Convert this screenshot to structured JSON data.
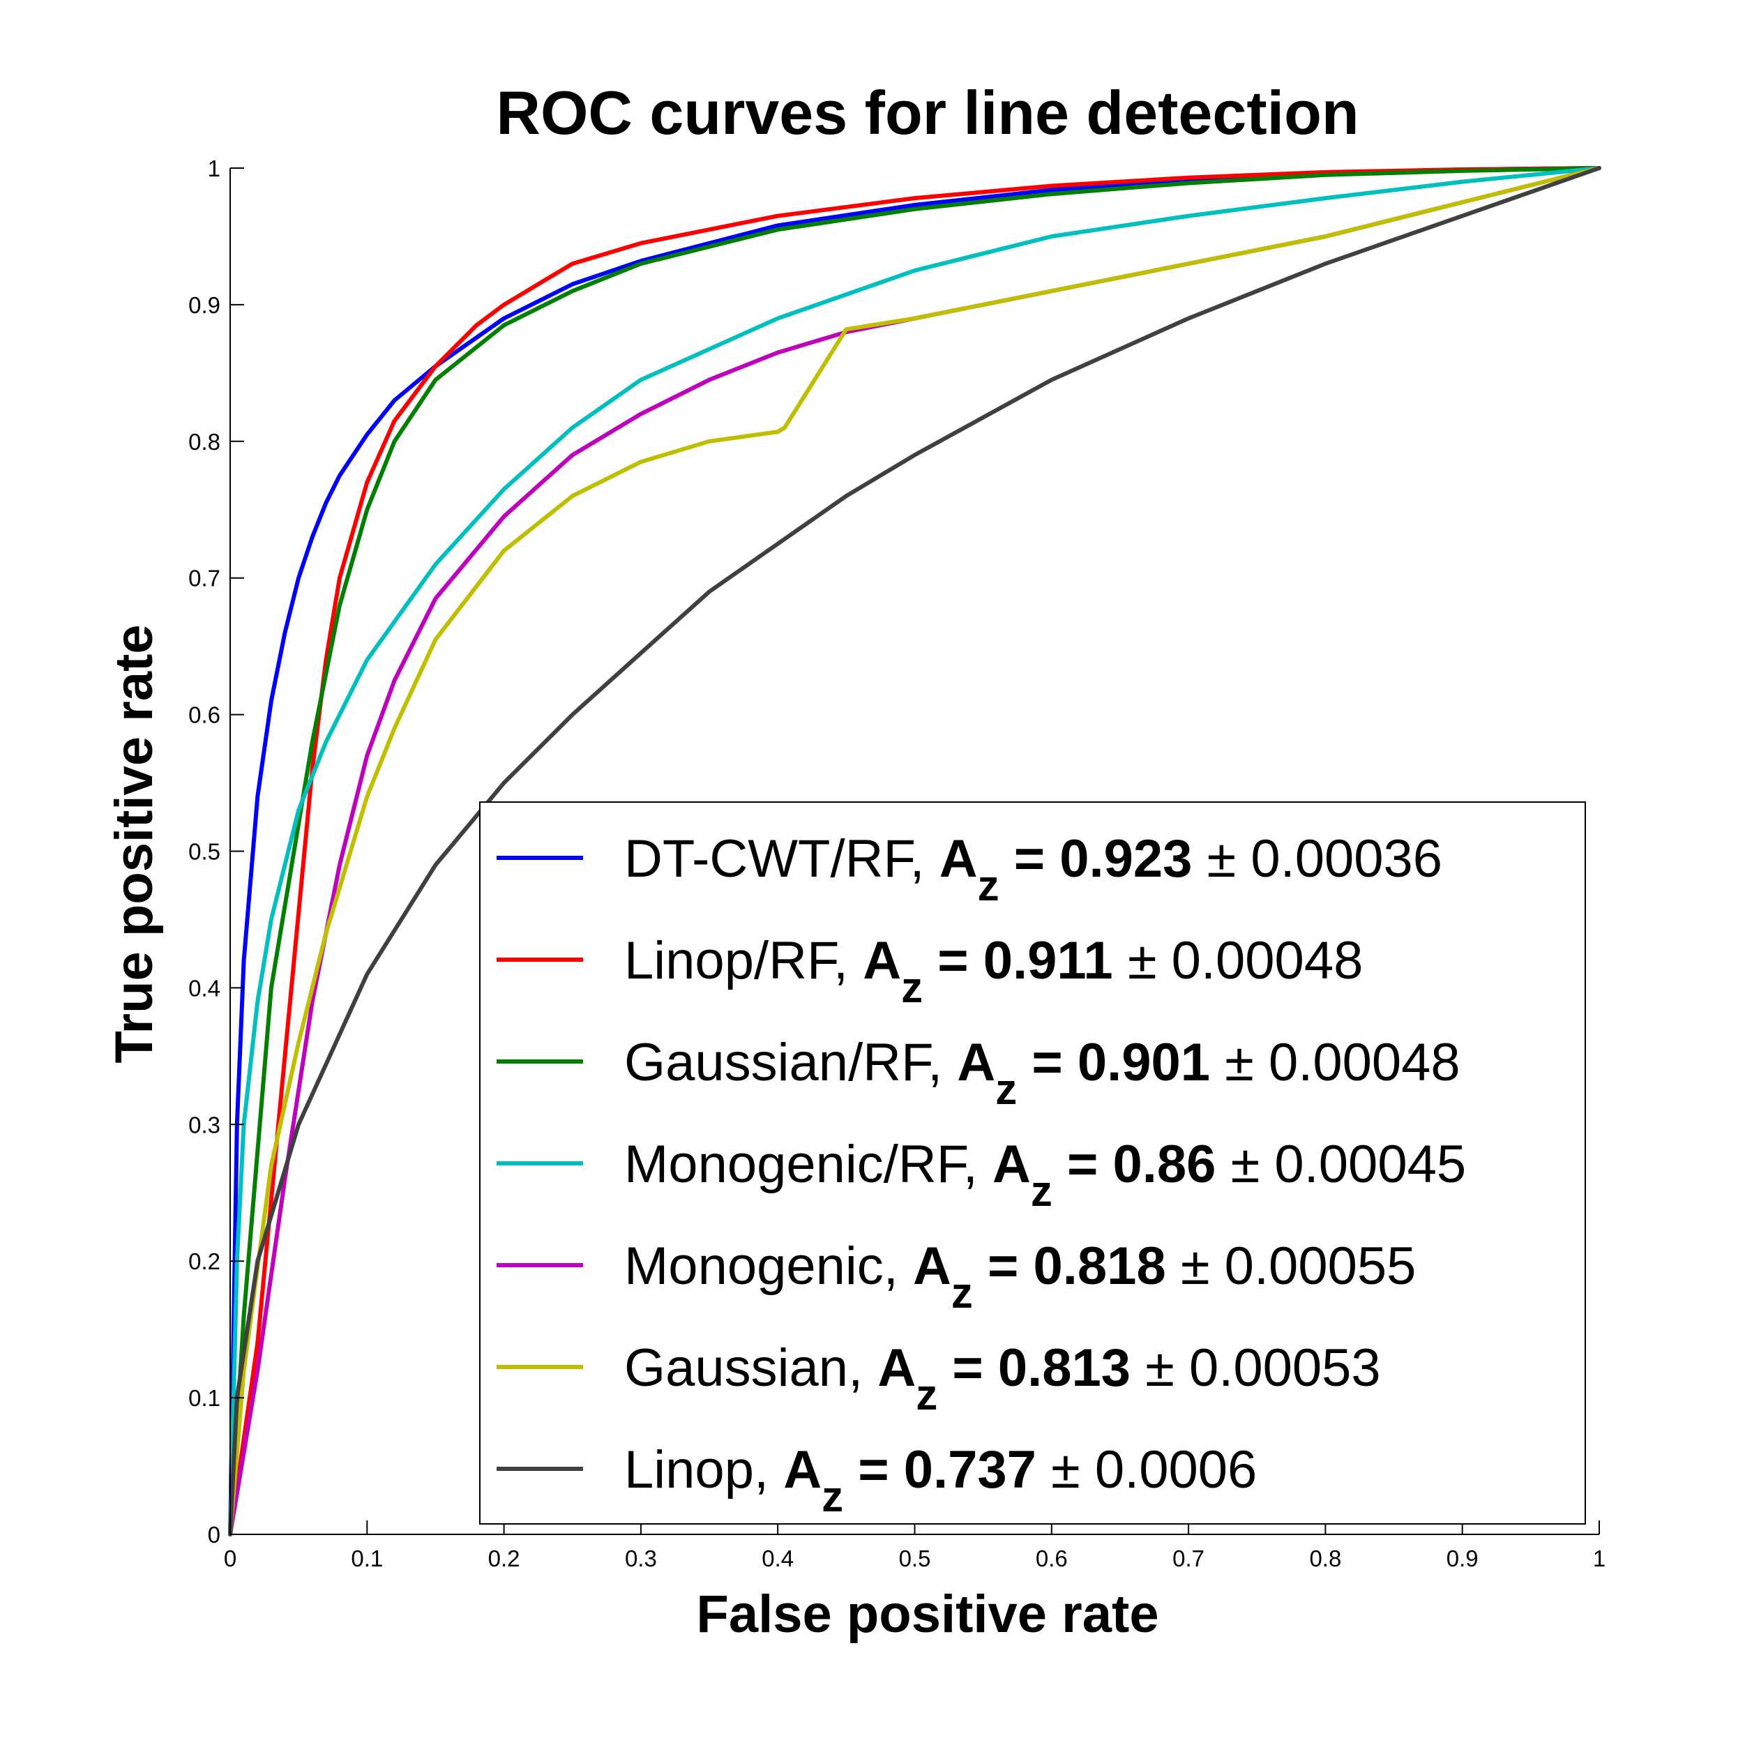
{
  "chart_data": {
    "type": "line",
    "title": "ROC curves for line detection",
    "xlabel": "False positive rate",
    "ylabel": "True positive rate",
    "xlim": [
      0,
      1
    ],
    "ylim": [
      0,
      1
    ],
    "xticks": [
      "0",
      "0.1",
      "0.2",
      "0.3",
      "0.4",
      "0.5",
      "0.6",
      "0.7",
      "0.8",
      "0.9",
      "1"
    ],
    "yticks": [
      "0",
      "0.1",
      "0.2",
      "0.3",
      "0.4",
      "0.5",
      "0.6",
      "0.7",
      "0.8",
      "0.9",
      "1"
    ],
    "grid": false,
    "legend_position": "bottom-right",
    "series": [
      {
        "name": "DT-CWT/RF",
        "az": "0.923",
        "pm": "0.00036",
        "color": "#0000ff",
        "x": [
          0,
          0.005,
          0.01,
          0.02,
          0.03,
          0.04,
          0.05,
          0.06,
          0.07,
          0.08,
          0.1,
          0.12,
          0.15,
          0.2,
          0.25,
          0.3,
          0.4,
          0.5,
          0.6,
          0.7,
          0.8,
          0.9,
          1
        ],
        "y": [
          0,
          0.3,
          0.42,
          0.54,
          0.61,
          0.66,
          0.7,
          0.73,
          0.755,
          0.775,
          0.805,
          0.83,
          0.855,
          0.89,
          0.915,
          0.932,
          0.958,
          0.973,
          0.984,
          0.991,
          0.996,
          0.999,
          1
        ]
      },
      {
        "name": "Linop/RF",
        "az": "0.911",
        "pm": "0.00048",
        "color": "#ff0000",
        "x": [
          0,
          0.02,
          0.04,
          0.06,
          0.07,
          0.08,
          0.1,
          0.12,
          0.15,
          0.18,
          0.2,
          0.25,
          0.3,
          0.4,
          0.5,
          0.6,
          0.7,
          0.8,
          0.9,
          1
        ],
        "y": [
          0,
          0.14,
          0.35,
          0.56,
          0.64,
          0.7,
          0.77,
          0.815,
          0.855,
          0.885,
          0.9,
          0.93,
          0.945,
          0.965,
          0.978,
          0.987,
          0.993,
          0.997,
          0.999,
          1
        ]
      },
      {
        "name": "Gaussian/RF",
        "az": "0.901",
        "pm": "0.00048",
        "color": "#007f00",
        "x": [
          0,
          0.01,
          0.03,
          0.05,
          0.06,
          0.08,
          0.1,
          0.12,
          0.15,
          0.2,
          0.25,
          0.3,
          0.4,
          0.5,
          0.6,
          0.7,
          0.8,
          0.9,
          1
        ],
        "y": [
          0,
          0.16,
          0.4,
          0.52,
          0.58,
          0.68,
          0.75,
          0.8,
          0.845,
          0.885,
          0.91,
          0.93,
          0.955,
          0.97,
          0.981,
          0.989,
          0.995,
          0.998,
          1
        ]
      },
      {
        "name": "Monogenic/RF",
        "az": "0.86",
        "pm": "0.00045",
        "color": "#00bfbf",
        "x": [
          0,
          0.005,
          0.01,
          0.02,
          0.03,
          0.05,
          0.07,
          0.1,
          0.15,
          0.2,
          0.25,
          0.3,
          0.4,
          0.5,
          0.6,
          0.7,
          0.8,
          0.9,
          1
        ],
        "y": [
          0,
          0.2,
          0.3,
          0.39,
          0.45,
          0.53,
          0.58,
          0.64,
          0.71,
          0.765,
          0.81,
          0.845,
          0.89,
          0.925,
          0.95,
          0.965,
          0.978,
          0.99,
          1
        ]
      },
      {
        "name": "Monogenic",
        "az": "0.818",
        "pm": "0.00055",
        "color": "#bf00bf",
        "x": [
          0,
          0.02,
          0.04,
          0.06,
          0.08,
          0.1,
          0.12,
          0.15,
          0.2,
          0.25,
          0.3,
          0.35,
          0.4,
          0.45,
          0.5,
          0.6,
          0.7,
          0.8,
          0.9,
          1
        ],
        "y": [
          0,
          0.12,
          0.26,
          0.39,
          0.49,
          0.57,
          0.625,
          0.685,
          0.745,
          0.79,
          0.82,
          0.845,
          0.865,
          0.88,
          0.89,
          0.91,
          0.93,
          0.95,
          0.975,
          1
        ]
      },
      {
        "name": "Gaussian",
        "az": "0.813",
        "pm": "0.00053",
        "color": "#bfbf00",
        "x": [
          0,
          0.01,
          0.03,
          0.05,
          0.07,
          0.1,
          0.12,
          0.15,
          0.2,
          0.25,
          0.3,
          0.35,
          0.4,
          0.405,
          0.45,
          0.5,
          0.6,
          0.7,
          0.8,
          0.9,
          1
        ],
        "y": [
          0,
          0.12,
          0.27,
          0.36,
          0.44,
          0.54,
          0.59,
          0.655,
          0.72,
          0.76,
          0.785,
          0.8,
          0.807,
          0.81,
          0.882,
          0.89,
          0.91,
          0.93,
          0.95,
          0.975,
          1
        ]
      },
      {
        "name": "Linop",
        "az": "0.737",
        "pm": "0.0006",
        "color": "#404040",
        "x": [
          0,
          0.005,
          0.02,
          0.05,
          0.1,
          0.15,
          0.2,
          0.25,
          0.3,
          0.35,
          0.4,
          0.45,
          0.5,
          0.6,
          0.7,
          0.8,
          0.9,
          1
        ],
        "y": [
          0,
          0.1,
          0.2,
          0.3,
          0.41,
          0.49,
          0.55,
          0.6,
          0.645,
          0.69,
          0.725,
          0.76,
          0.79,
          0.845,
          0.89,
          0.93,
          0.965,
          1
        ]
      }
    ]
  }
}
